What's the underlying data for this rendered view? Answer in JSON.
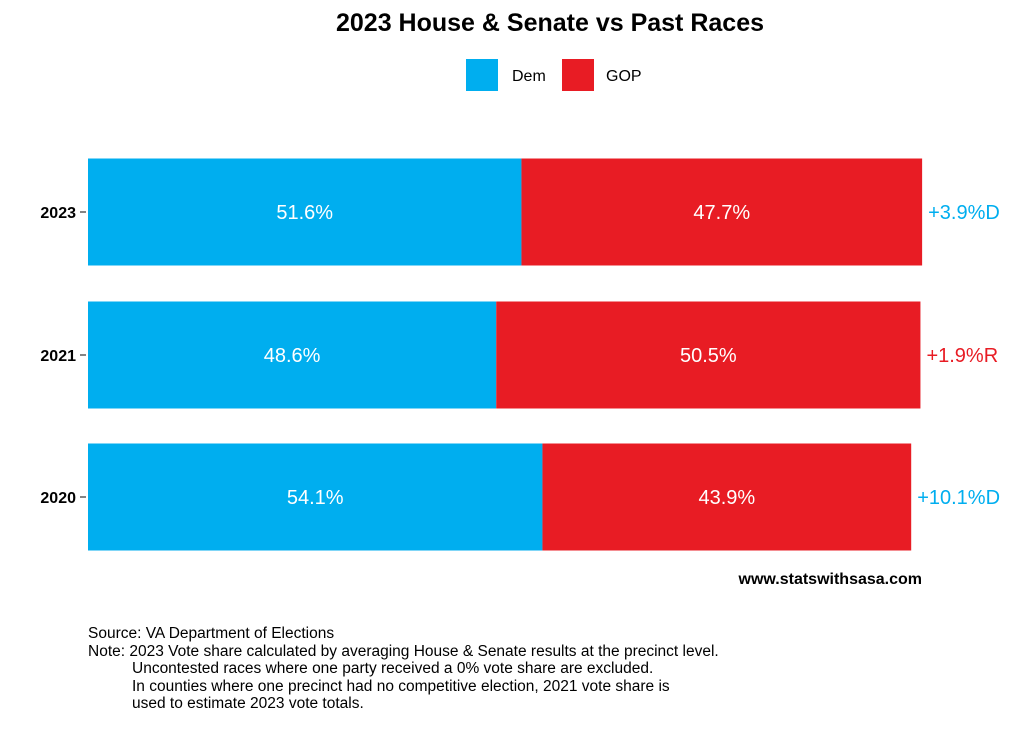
{
  "chart_data": {
    "type": "bar",
    "orientation": "horizontal",
    "stacked": true,
    "title": "2023 House & Senate vs Past Races",
    "categories": [
      "2023",
      "2021",
      "2020"
    ],
    "series": [
      {
        "name": "Dem",
        "color": "#00AEEF",
        "values": [
          51.6,
          48.6,
          54.1
        ],
        "labels": [
          "51.6%",
          "48.6%",
          "54.1%"
        ]
      },
      {
        "name": "GOP",
        "color": "#E81C24",
        "values": [
          47.7,
          50.5,
          43.9
        ],
        "labels": [
          "47.7%",
          "50.5%",
          "43.9%"
        ]
      }
    ],
    "margins": [
      {
        "text": "+3.9%D",
        "party": "Dem"
      },
      {
        "text": "+1.9%R",
        "party": "GOP"
      },
      {
        "text": "+10.1%D",
        "party": "Dem"
      }
    ],
    "xlim": [
      0,
      100
    ],
    "legend_position": "top",
    "grid": false
  },
  "website": "www.statswithsasa.com",
  "caption": {
    "source": "Source: VA Department of Elections",
    "note_lines": [
      "Note: 2023 Vote share calculated by averaging House & Senate results at the precinct level.",
      "Uncontested races where one party received a 0% vote share are excluded.",
      "In counties where one precinct had no competitive election, 2021 vote share is",
      "used to estimate 2023 vote totals."
    ]
  }
}
